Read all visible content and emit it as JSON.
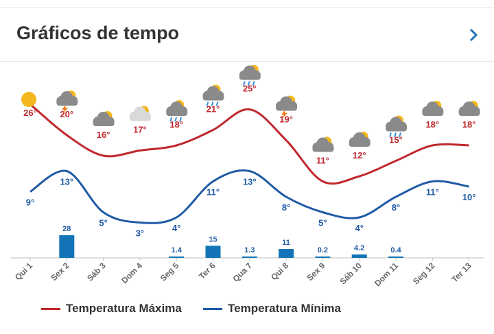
{
  "header": {
    "title": "Gráficos de tempo",
    "next_icon": "chevron-right-icon"
  },
  "chart_data": {
    "type": "line",
    "categories": [
      "Qui 1",
      "Sex 2",
      "Sáb 3",
      "Dom 4",
      "Seg 5",
      "Ter 6",
      "Qua 7",
      "Qui 8",
      "Sex 9",
      "Sáb 10",
      "Dom 11",
      "Seg 12",
      "Ter 13"
    ],
    "series": [
      {
        "name": "Temperatura Máxima",
        "color": "#c0282d",
        "values": [
          26,
          20,
          16,
          17,
          18,
          21,
          25,
          19,
          11,
          12,
          15,
          18,
          18
        ],
        "labels": [
          "26°",
          "20°",
          "16°",
          "17°",
          "18°",
          "21°",
          "25°",
          "19°",
          "11°",
          "12°",
          "15°",
          "18°",
          "18°"
        ]
      },
      {
        "name": "Temperatura Mínima",
        "color": "#1f5aa6",
        "values": [
          9,
          13,
          5,
          3,
          4,
          11,
          13,
          8,
          5,
          4,
          8,
          11,
          10
        ],
        "labels": [
          "9°",
          "13°",
          "5°",
          "3°",
          "4°",
          "11°",
          "13°",
          "8°",
          "5°",
          "4°",
          "8°",
          "11°",
          "10°"
        ]
      }
    ],
    "precipitation": {
      "color": "#1375b8",
      "values": [
        0,
        28,
        0,
        0,
        1.4,
        15,
        1.3,
        11,
        0.2,
        4.2,
        0.4,
        0,
        0
      ],
      "labels": [
        "",
        "28",
        "",
        "",
        "1.4",
        "15",
        "1.3",
        "11",
        "0.2",
        "4.2",
        "0.4",
        "",
        ""
      ]
    },
    "icons": [
      "sun-icon",
      "storm-icon",
      "cloud-sun-icon",
      "partly-cloudy-icon",
      "rain-icon",
      "rain-icon",
      "sun-rain-icon",
      "storm-icon",
      "cloud-sun-icon",
      "cloud-sun-icon",
      "rain-icon",
      "cloud-sun-icon",
      "cloud-sun-icon"
    ],
    "legend_position": "bottom-left"
  }
}
